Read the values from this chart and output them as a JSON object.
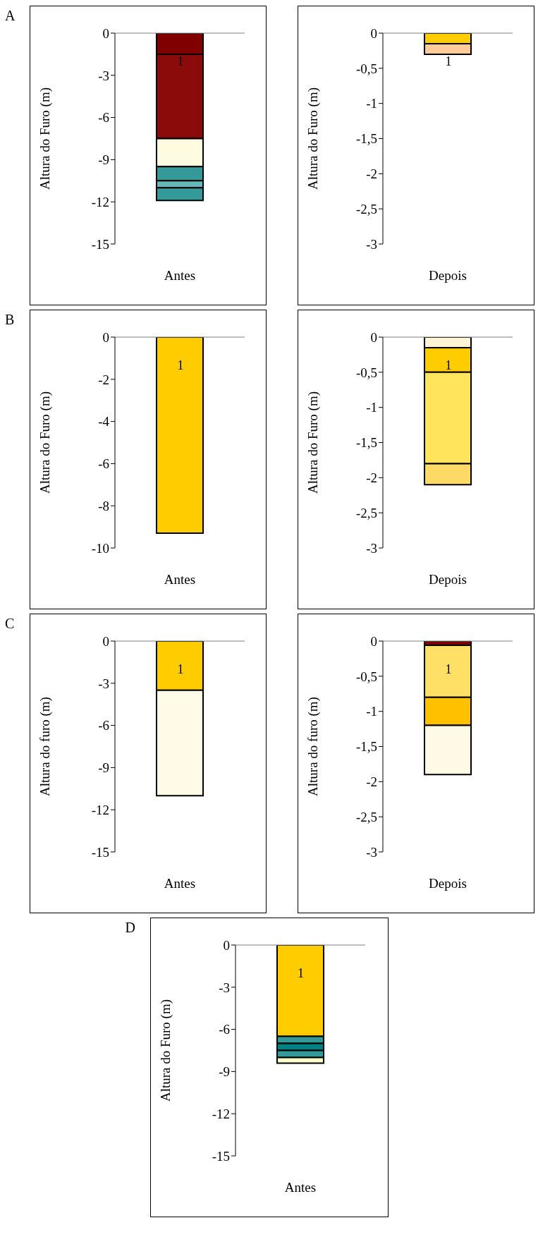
{
  "chart_data": [
    {
      "type": "bar",
      "title": "A",
      "categories": [
        "Antes"
      ],
      "ylabel": "Altura do Furo (m)",
      "ylim": [
        -15,
        0
      ],
      "yticks": [
        0,
        -3,
        -6,
        -9,
        -12,
        -15
      ],
      "stacked": true,
      "annotations": [
        "1"
      ],
      "series": [
        {
          "color": "#800000",
          "values": [
            -1.5
          ]
        },
        {
          "color": "#8b0a0a",
          "values": [
            -6
          ]
        },
        {
          "color": "#fffbe0",
          "values": [
            -2
          ]
        },
        {
          "color": "#339999",
          "values": [
            -1
          ]
        },
        {
          "color": "#66b8b8",
          "values": [
            -0.5
          ]
        },
        {
          "color": "#339999",
          "values": [
            -0.9
          ]
        }
      ]
    },
    {
      "type": "bar",
      "categories": [
        "Depois"
      ],
      "ylabel": "Altura do Furo (m)",
      "ylim": [
        -3,
        0
      ],
      "yticks": [
        0,
        {
          "value": -0.5,
          "label": "-0,5"
        },
        -1,
        {
          "value": -1.5,
          "label": "-1,5"
        },
        -2,
        {
          "value": -2.5,
          "label": "-2,5"
        },
        -3
      ],
      "stacked": true,
      "annotations": [
        "1"
      ],
      "series": [
        {
          "color": "#ffcc00",
          "values": [
            -0.15
          ]
        },
        {
          "color": "#ffcc99",
          "values": [
            -0.15
          ]
        }
      ]
    },
    {
      "type": "bar",
      "title": "B",
      "categories": [
        "Antes"
      ],
      "ylabel": "Altura do Furo (m)",
      "ylim": [
        -10,
        0
      ],
      "yticks": [
        0,
        -2,
        -4,
        -6,
        -8,
        -10
      ],
      "stacked": true,
      "annotations": [
        "1"
      ],
      "series": [
        {
          "color": "#ffcc00",
          "values": [
            -9.3
          ]
        }
      ]
    },
    {
      "type": "bar",
      "categories": [
        "Depois"
      ],
      "ylabel": "Altura do Furo (m)",
      "ylim": [
        -3,
        0
      ],
      "yticks": [
        0,
        {
          "value": -0.5,
          "label": "-0,5"
        },
        -1,
        {
          "value": -1.5,
          "label": "-1,5"
        },
        -2,
        {
          "value": -2.5,
          "label": "-2,5"
        },
        -3
      ],
      "stacked": true,
      "annotations": [
        "1"
      ],
      "series": [
        {
          "color": "#fff5d6",
          "values": [
            -0.15
          ]
        },
        {
          "color": "#ffcc00",
          "values": [
            -0.35
          ]
        },
        {
          "color": "#ffe45c",
          "values": [
            -1.3
          ]
        },
        {
          "color": "#ffd966",
          "values": [
            -0.3
          ]
        }
      ]
    },
    {
      "type": "bar",
      "title": "C",
      "categories": [
        "Antes"
      ],
      "ylabel": "Altura do furo (m)",
      "ylim": [
        -15,
        0
      ],
      "yticks": [
        0,
        -3,
        -6,
        -9,
        -12,
        -15
      ],
      "stacked": true,
      "annotations": [
        "1"
      ],
      "series": [
        {
          "color": "#ffcc00",
          "values": [
            -3.5
          ]
        },
        {
          "color": "#fffbe6",
          "values": [
            -7.5
          ]
        }
      ]
    },
    {
      "type": "bar",
      "categories": [
        "Depois"
      ],
      "ylabel": "Altura do furo (m)",
      "ylim": [
        -3,
        0
      ],
      "yticks": [
        0,
        {
          "value": -0.5,
          "label": "-0,5"
        },
        -1,
        {
          "value": -1.5,
          "label": "-1,5"
        },
        -2,
        {
          "value": -2.5,
          "label": "-2,5"
        },
        -3
      ],
      "stacked": true,
      "annotations": [
        "1"
      ],
      "series": [
        {
          "color": "#800000",
          "values": [
            -0.06
          ]
        },
        {
          "color": "#ffe066",
          "values": [
            -0.74
          ]
        },
        {
          "color": "#ffc000",
          "values": [
            -0.4
          ]
        },
        {
          "color": "#fffae6",
          "values": [
            -0.7
          ]
        }
      ]
    },
    {
      "type": "bar",
      "title": "D",
      "categories": [
        "Antes"
      ],
      "ylabel": "Altura do Furo (m)",
      "ylim": [
        -15,
        0
      ],
      "yticks": [
        0,
        -3,
        -6,
        -9,
        -12,
        -15
      ],
      "stacked": true,
      "annotations": [
        "1"
      ],
      "series": [
        {
          "color": "#ffcc00",
          "values": [
            -6.5
          ]
        },
        {
          "color": "#339999",
          "values": [
            -0.5
          ]
        },
        {
          "color": "#008080",
          "values": [
            -0.5
          ]
        },
        {
          "color": "#339999",
          "values": [
            -0.5
          ]
        },
        {
          "color": "#ffffcc",
          "values": [
            -0.4
          ]
        }
      ]
    }
  ]
}
